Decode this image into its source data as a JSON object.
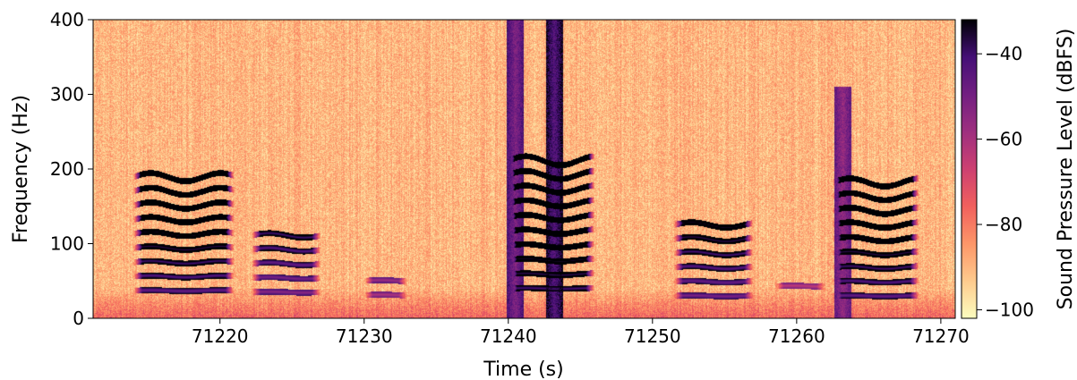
{
  "chart_data": {
    "type": "heatmap",
    "title": "",
    "xlabel": "Time (s)",
    "ylabel": "Frequency (Hz)",
    "xlim": [
      71211.2,
      71271.0
    ],
    "ylim": [
      0,
      400
    ],
    "x_ticks": [
      71220,
      71230,
      71240,
      71250,
      71260,
      71270
    ],
    "x_tick_labels": [
      "71220",
      "71230",
      "71240",
      "71250",
      "71260",
      "71270"
    ],
    "y_ticks": [
      0,
      100,
      200,
      300,
      400
    ],
    "y_tick_labels": [
      "0",
      "100",
      "200",
      "300",
      "400"
    ],
    "colorbar": {
      "label": "Sound Pressure Level (dBFS)",
      "colormap": "magma",
      "range": [
        -102,
        -32
      ],
      "ticks": [
        -40,
        -60,
        -80,
        -100
      ],
      "tick_labels": [
        "−40",
        "−60",
        "−80",
        "−100"
      ]
    },
    "calls": [
      {
        "t_start": 71214.0,
        "t_end": 71221.0,
        "f0": 37,
        "harmonics": 9,
        "level": -48
      },
      {
        "t_start": 71222.2,
        "t_end": 71227.0,
        "f0": 35,
        "harmonics": 5,
        "level": -55
      },
      {
        "t_start": 71230.0,
        "t_end": 71233.0,
        "f0": 31,
        "harmonics": 2,
        "level": -62
      },
      {
        "t_start": 71240.0,
        "t_end": 71246.0,
        "f0": 40,
        "harmonics": 10,
        "level": -42
      },
      {
        "t_start": 71251.5,
        "t_end": 71257.0,
        "f0": 30,
        "harmonics": 6,
        "level": -52
      },
      {
        "t_start": 71258.5,
        "t_end": 71262.0,
        "f0": 43,
        "harmonics": 1,
        "level": -65
      },
      {
        "t_start": 71262.5,
        "t_end": 71268.5,
        "f0": 30,
        "harmonics": 9,
        "level": -48
      }
    ],
    "broadband_pulses": [
      {
        "t": 71240.5,
        "f_max": 400,
        "level": -52
      },
      {
        "t": 71243.2,
        "f_max": 400,
        "level": -44
      },
      {
        "t": 71263.2,
        "f_max": 310,
        "level": -56
      }
    ],
    "grid": false,
    "legend": "none"
  }
}
